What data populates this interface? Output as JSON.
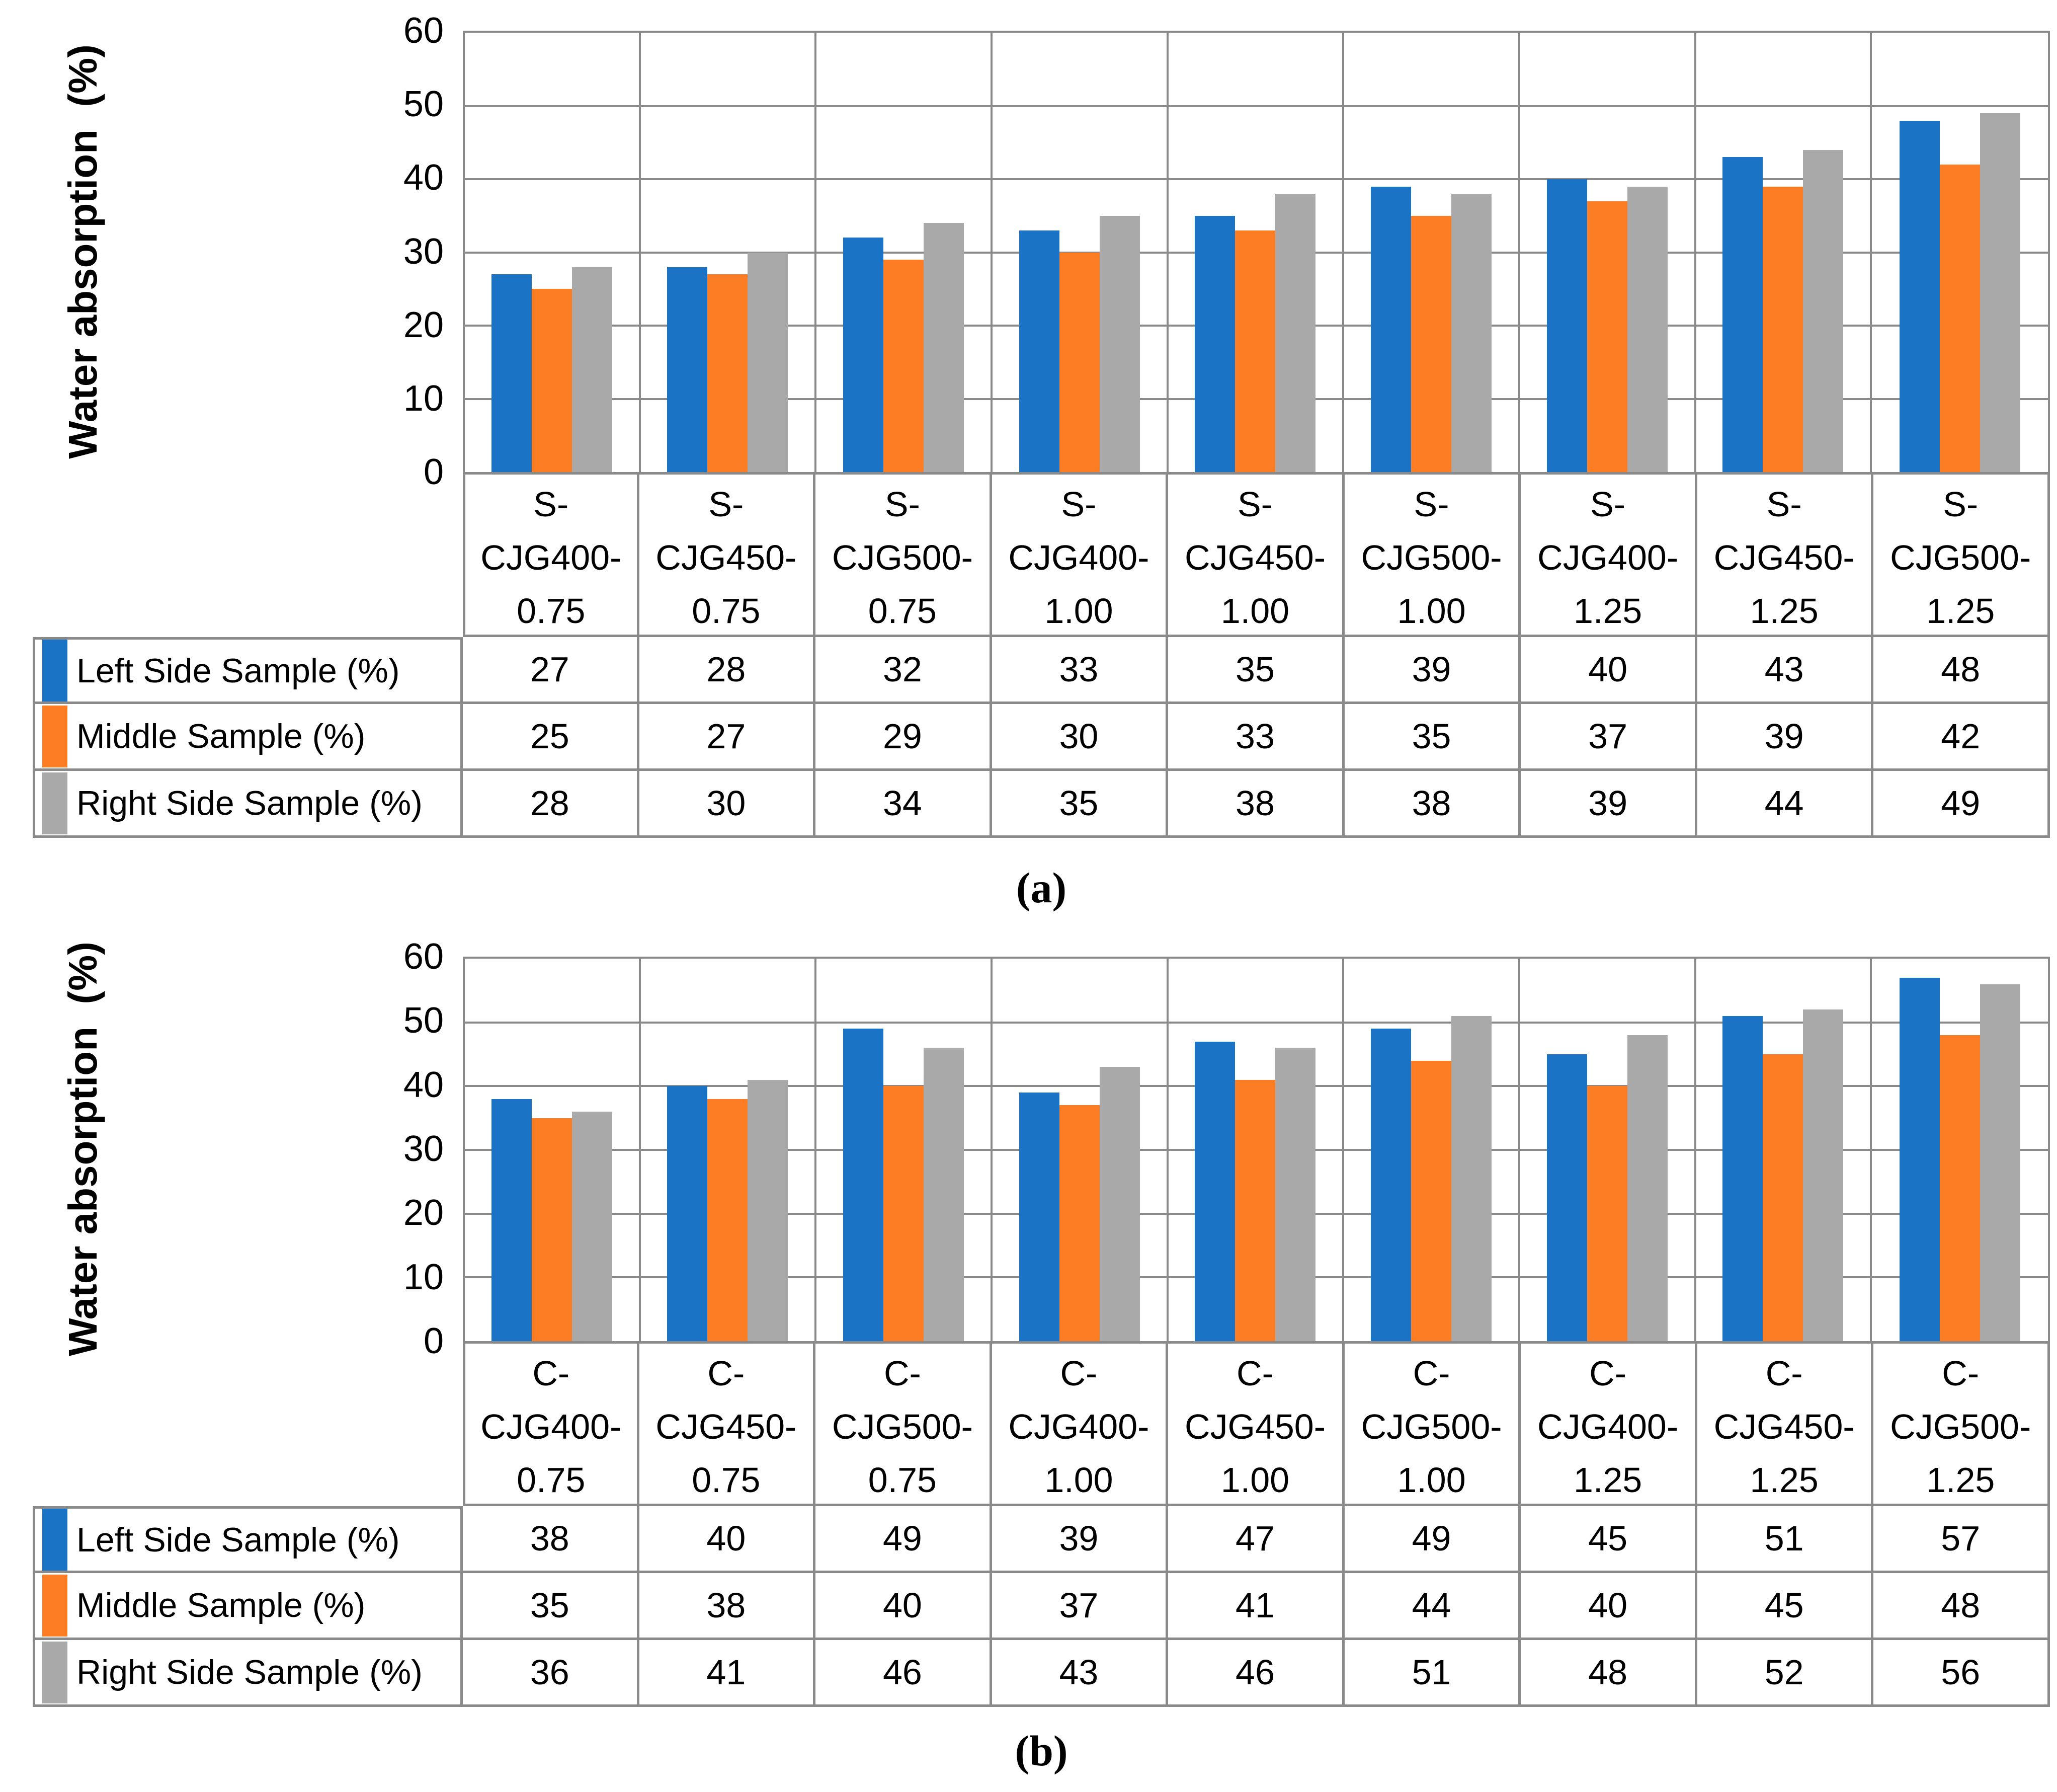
{
  "chart_data": [
    {
      "type": "bar",
      "panel_label": "(a)",
      "title": "",
      "xlabel": "",
      "ylabel": "Water absorption  (%)",
      "ylim": [
        0,
        60
      ],
      "yticks": [
        0,
        10,
        20,
        30,
        40,
        50,
        60
      ],
      "grid": "horizontal major gridlines every 10 and vertical category boundary gridlines",
      "legend_position": "data table rows below chart, swatches at left",
      "categories": [
        "S-CJG400-0.75",
        "S-CJG450-0.75",
        "S-CJG500-0.75",
        "S-CJG400-1.00",
        "S-CJG450-1.00",
        "S-CJG500-1.00",
        "S-CJG400-1.25",
        "S-CJG450-1.25",
        "S-CJG500-1.25"
      ],
      "series": [
        {
          "name": "Left Side Sample (%)",
          "color": "#1B73C6",
          "values": [
            27,
            28,
            32,
            33,
            35,
            39,
            40,
            43,
            48
          ]
        },
        {
          "name": "Middle Sample (%)",
          "color": "#FC7D24",
          "values": [
            25,
            27,
            29,
            30,
            33,
            35,
            37,
            39,
            42
          ]
        },
        {
          "name": "Right Side Sample (%)",
          "color": "#A9A9A9",
          "values": [
            28,
            30,
            34,
            35,
            38,
            38,
            39,
            44,
            49
          ]
        }
      ]
    },
    {
      "type": "bar",
      "panel_label": "(b)",
      "title": "",
      "xlabel": "",
      "ylabel": "Water absorption  (%)",
      "ylim": [
        0,
        60
      ],
      "yticks": [
        0,
        10,
        20,
        30,
        40,
        50,
        60
      ],
      "grid": "horizontal major gridlines every 10 and vertical category boundary gridlines",
      "legend_position": "data table rows below chart, swatches at left",
      "categories": [
        "C-CJG400-0.75",
        "C-CJG450-0.75",
        "C-CJG500-0.75",
        "C-CJG400-1.00",
        "C-CJG450-1.00",
        "C-CJG500-1.00",
        "C-CJG400-1.25",
        "C-CJG450-1.25",
        "C-CJG500-1.25"
      ],
      "series": [
        {
          "name": "Left Side Sample (%)",
          "color": "#1B73C6",
          "values": [
            38,
            40,
            49,
            39,
            47,
            49,
            45,
            51,
            57
          ]
        },
        {
          "name": "Middle Sample (%)",
          "color": "#FC7D24",
          "values": [
            35,
            38,
            40,
            37,
            41,
            44,
            40,
            45,
            48
          ]
        },
        {
          "name": "Right Side Sample (%)",
          "color": "#A9A9A9",
          "values": [
            36,
            41,
            46,
            43,
            46,
            51,
            48,
            52,
            56
          ]
        }
      ]
    }
  ],
  "colors": {
    "gridline": "#8A8A8A",
    "table_border": "#8A8A8A",
    "text": "#000000",
    "background": "#FFFFFF"
  }
}
